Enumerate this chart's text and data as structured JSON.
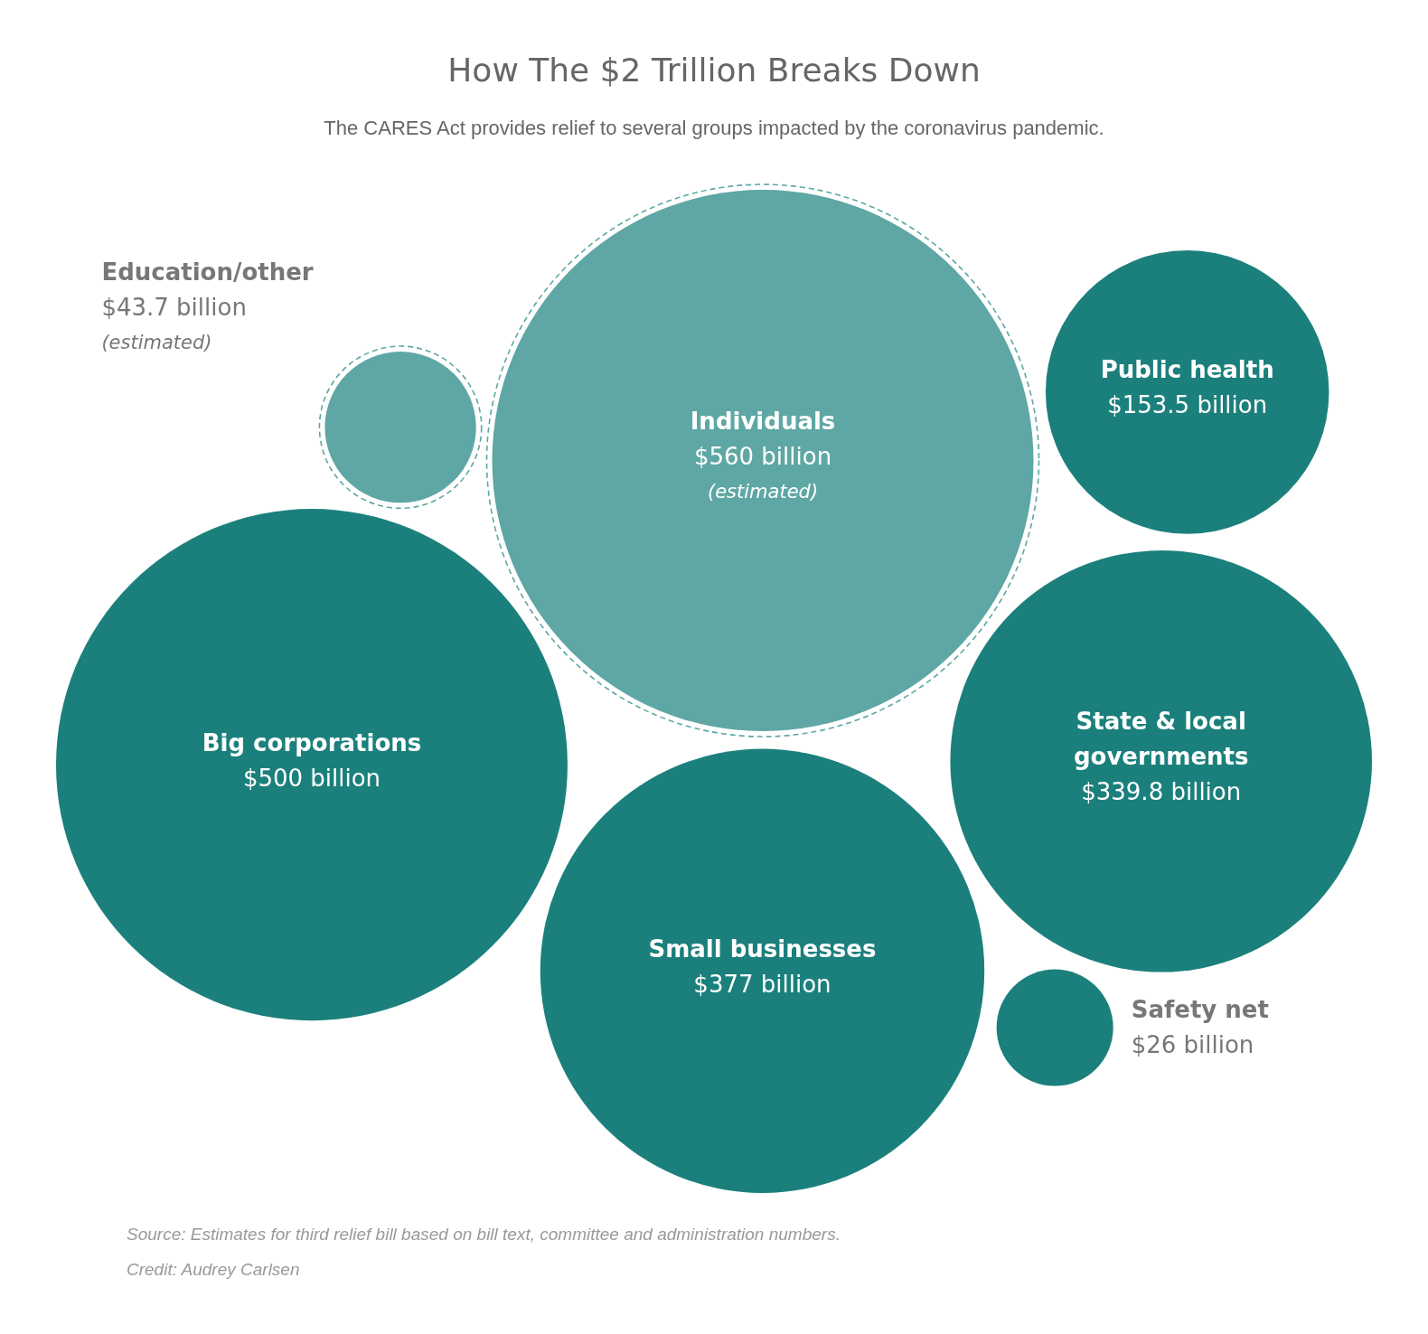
{
  "chart_data": {
    "type": "other",
    "title": "How The $2 Trillion Breaks Down",
    "subtitle": "The CARES Act provides relief to several groups impacted by the coronavirus pandemic.",
    "categories": [
      "Education/other",
      "Individuals",
      "Public health",
      "Big corporations",
      "State & local governments",
      "Small businesses",
      "Safety net"
    ],
    "series": [
      {
        "color": "#5ea7a4",
        "line_style": "dashed",
        "values": [
          43.7,
          560,
          null,
          null,
          null,
          null,
          null
        ],
        "value_labels": [
          "$43.7 billion",
          "$560 billion",
          null,
          null,
          null,
          null,
          null
        ]
      },
      {
        "color": "#1b807c",
        "values": [
          null,
          null,
          153.5,
          500,
          339.8,
          377,
          26
        ],
        "value_labels": [
          null,
          null,
          "$153.5 billion",
          "$500 billion",
          "$339.8 billion",
          "$377 billion",
          "$26 billion"
        ]
      }
    ],
    "annotations": [
      {
        "text": "(estimated)",
        "x": "Education/other"
      },
      {
        "text": "(estimated)",
        "x": "Individuals"
      },
      "Source: Estimates for third relief bill based on bill text, committee and administration numbers.",
      "Credit: Audrey Carlsen"
    ]
  }
}
